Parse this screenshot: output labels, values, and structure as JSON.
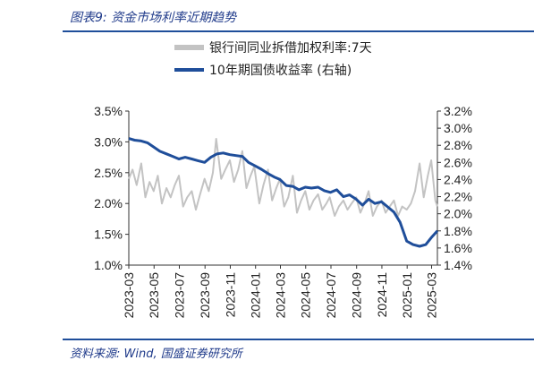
{
  "header": {
    "title": "图表9:  资金市场利率近期趋势"
  },
  "footer": {
    "source": "资料来源:  Wind,  国盛证券研究所"
  },
  "chart_data": {
    "type": "line",
    "title": "",
    "x_ticks": [
      "2023-03",
      "2023-05",
      "2023-07",
      "2023-09",
      "2023-11",
      "2024-01",
      "2024-03",
      "2024-05",
      "2024-07",
      "2024-09",
      "2024-11",
      "2025-01",
      "2025-03"
    ],
    "y_left": {
      "ticks": [
        "1.0%",
        "1.5%",
        "2.0%",
        "2.5%",
        "3.0%",
        "3.5%"
      ],
      "range": [
        1.0,
        3.5
      ]
    },
    "y_right": {
      "ticks": [
        "1.4%",
        "1.6%",
        "1.8%",
        "2.0%",
        "2.2%",
        "2.4%",
        "2.6%",
        "2.8%",
        "3.0%",
        "3.2%"
      ],
      "range": [
        1.4,
        3.2
      ]
    },
    "legend": {
      "position": "top"
    },
    "colors": {
      "interbank": "#c3c3c3",
      "bond": "#1f4e9a"
    },
    "series": [
      {
        "name": "银行间同业拆借加权利率:7天",
        "axis": "left",
        "x": [
          "2023-03-01",
          "2023-03-10",
          "2023-03-20",
          "2023-03-31",
          "2023-04-10",
          "2023-04-20",
          "2023-04-30",
          "2023-05-10",
          "2023-05-20",
          "2023-05-31",
          "2023-06-10",
          "2023-06-20",
          "2023-06-30",
          "2023-07-10",
          "2023-07-20",
          "2023-07-31",
          "2023-08-10",
          "2023-08-20",
          "2023-08-31",
          "2023-09-10",
          "2023-09-20",
          "2023-09-28",
          "2023-10-10",
          "2023-10-20",
          "2023-10-31",
          "2023-11-10",
          "2023-11-20",
          "2023-11-30",
          "2023-12-10",
          "2023-12-20",
          "2023-12-29",
          "2024-01-10",
          "2024-01-20",
          "2024-01-31",
          "2024-02-10",
          "2024-02-20",
          "2024-02-29",
          "2024-03-10",
          "2024-03-20",
          "2024-03-31",
          "2024-04-10",
          "2024-04-20",
          "2024-04-30",
          "2024-05-10",
          "2024-05-20",
          "2024-05-31",
          "2024-06-10",
          "2024-06-20",
          "2024-06-28",
          "2024-07-10",
          "2024-07-20",
          "2024-07-31",
          "2024-08-10",
          "2024-08-20",
          "2024-08-31",
          "2024-09-10",
          "2024-09-20",
          "2024-09-30",
          "2024-10-10",
          "2024-10-20",
          "2024-10-31",
          "2024-11-10",
          "2024-11-20",
          "2024-11-30",
          "2024-12-10",
          "2024-12-20",
          "2024-12-31",
          "2025-01-10",
          "2025-01-20",
          "2025-01-31",
          "2025-02-10",
          "2025-02-20",
          "2025-02-28",
          "2025-03-10",
          "2025-03-15"
        ],
        "y": [
          2.4,
          2.55,
          2.3,
          2.65,
          2.1,
          2.35,
          2.2,
          2.45,
          2.0,
          2.25,
          2.1,
          2.3,
          2.45,
          1.95,
          2.1,
          2.2,
          1.9,
          2.15,
          2.4,
          2.2,
          2.5,
          3.05,
          2.4,
          2.55,
          2.7,
          2.35,
          2.55,
          2.85,
          2.25,
          2.45,
          2.6,
          2.0,
          2.3,
          2.55,
          2.05,
          2.25,
          2.4,
          1.95,
          2.1,
          2.45,
          1.85,
          2.05,
          2.2,
          1.9,
          2.05,
          2.15,
          1.9,
          2.0,
          2.1,
          1.8,
          1.95,
          2.05,
          1.9,
          2.0,
          2.1,
          1.85,
          2.0,
          2.2,
          1.8,
          1.95,
          2.05,
          1.85,
          1.95,
          2.05,
          1.8,
          1.95,
          1.9,
          2.0,
          2.2,
          2.65,
          2.1,
          2.45,
          2.7,
          2.05,
          1.95
        ]
      },
      {
        "name": "10年期国债收益率 (右轴)",
        "axis": "right",
        "x": [
          "2023-03-01",
          "2023-03-15",
          "2023-03-31",
          "2023-04-15",
          "2023-04-30",
          "2023-05-15",
          "2023-05-31",
          "2023-06-15",
          "2023-06-30",
          "2023-07-15",
          "2023-07-31",
          "2023-08-15",
          "2023-08-31",
          "2023-09-15",
          "2023-09-30",
          "2023-10-15",
          "2023-10-31",
          "2023-11-15",
          "2023-11-30",
          "2023-12-15",
          "2023-12-31",
          "2024-01-15",
          "2024-01-31",
          "2024-02-15",
          "2024-02-29",
          "2024-03-15",
          "2024-03-31",
          "2024-04-15",
          "2024-04-30",
          "2024-05-15",
          "2024-05-31",
          "2024-06-15",
          "2024-06-30",
          "2024-07-15",
          "2024-07-31",
          "2024-08-15",
          "2024-08-31",
          "2024-09-15",
          "2024-09-30",
          "2024-10-15",
          "2024-10-31",
          "2024-11-15",
          "2024-11-30",
          "2024-12-15",
          "2024-12-31",
          "2025-01-15",
          "2025-01-31",
          "2025-02-15",
          "2025-02-28",
          "2025-03-15"
        ],
        "y": [
          2.88,
          2.86,
          2.85,
          2.83,
          2.78,
          2.73,
          2.7,
          2.67,
          2.64,
          2.66,
          2.64,
          2.62,
          2.6,
          2.66,
          2.7,
          2.71,
          2.69,
          2.68,
          2.67,
          2.6,
          2.56,
          2.52,
          2.47,
          2.43,
          2.4,
          2.33,
          2.32,
          2.28,
          2.31,
          2.3,
          2.31,
          2.27,
          2.25,
          2.28,
          2.2,
          2.22,
          2.17,
          2.1,
          2.17,
          2.12,
          2.14,
          2.08,
          2.02,
          1.9,
          1.68,
          1.64,
          1.62,
          1.64,
          1.72,
          1.8
        ]
      }
    ]
  }
}
